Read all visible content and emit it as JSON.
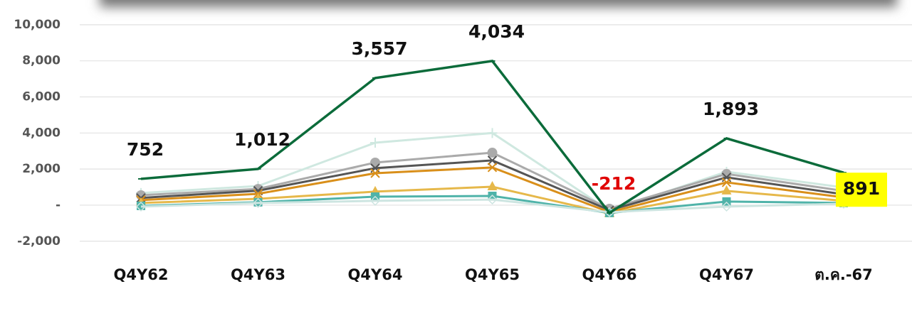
{
  "chart_data": {
    "type": "line",
    "categories": [
      "Q4Y62",
      "Q4Y63",
      "Q4Y64",
      "Q4Y65",
      "Q4Y66",
      "Q4Y67",
      "ต.ค.-67"
    ],
    "series": [
      {
        "color": "#cfe8e0",
        "marker": "plus",
        "values": [
          670,
          1060,
          3460,
          4000,
          -300,
          1850,
          980
        ]
      },
      {
        "color": "#aaaaaa",
        "marker": "circle",
        "values": [
          550,
          900,
          2360,
          2910,
          -200,
          1730,
          790
        ]
      },
      {
        "color": "#555555",
        "marker": "cross",
        "values": [
          400,
          800,
          2050,
          2480,
          -280,
          1540,
          600
        ]
      },
      {
        "color": "#d98f1a",
        "marker": "cross",
        "values": [
          280,
          630,
          1770,
          2090,
          -390,
          1260,
          430
        ]
      },
      {
        "color": "#e6b84a",
        "marker": "triangle",
        "values": [
          120,
          350,
          750,
          1020,
          -470,
          790,
          240
        ]
      },
      {
        "color": "#4fb3a9",
        "marker": "square",
        "values": [
          -40,
          160,
          470,
          510,
          -430,
          200,
          120
        ]
      },
      {
        "color": "#cde5e1",
        "marker": "diamond",
        "values": [
          -80,
          120,
          240,
          310,
          -390,
          -80,
          80
        ]
      },
      {
        "color": "#0b6b3a",
        "marker": "dash",
        "values": [
          1457,
          2008,
          7047,
          7992,
          -433,
          3700,
          1800
        ]
      }
    ],
    "annotations": [
      "752",
      "1,012",
      "3,557",
      "4,034",
      "-212",
      "1,893",
      "891"
    ],
    "annotation_colors": [
      "#111111",
      "#111111",
      "#111111",
      "#111111",
      "#e00000",
      "#111111",
      "#111111"
    ],
    "annotation_highlight": {
      "index": 6,
      "color": "#ffff00"
    },
    "ylim": [
      -2800,
      10400
    ],
    "yticks": [
      {
        "value": -2000,
        "label": "-2,000"
      },
      {
        "value": 0,
        "label": "-"
      },
      {
        "value": 2000,
        "label": "2,000"
      },
      {
        "value": 4000,
        "label": "4,000"
      },
      {
        "value": 6000,
        "label": "6,000"
      },
      {
        "value": 8000,
        "label": "8,000"
      },
      {
        "value": 10000,
        "label": "10,000"
      }
    ],
    "grid": true
  }
}
